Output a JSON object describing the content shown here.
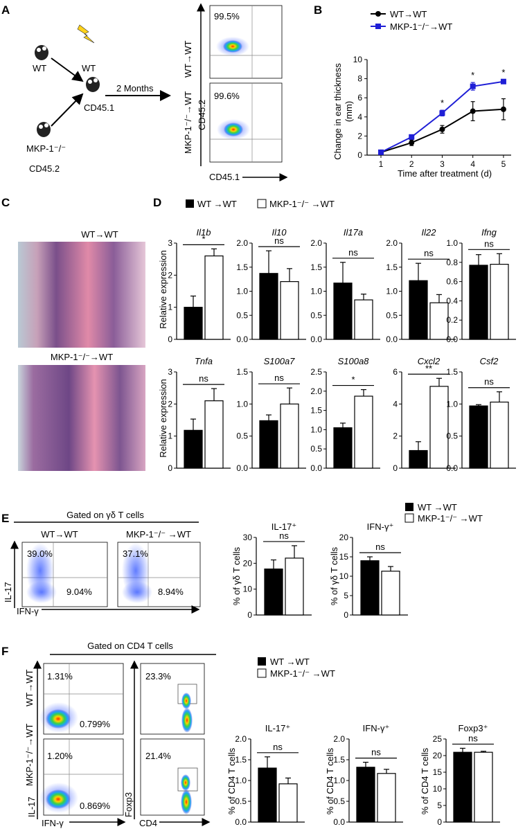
{
  "panel_labels": {
    "a": "A",
    "b": "B",
    "c": "C",
    "d": "D",
    "e": "E",
    "f": "F"
  },
  "panel_a": {
    "wt_label": "WT",
    "recipient_label": "WT",
    "recipient_cd": "CD45.1",
    "donor_label": "MKP-1⁻/⁻",
    "donor_cd": "CD45.2",
    "duration": "2 Months",
    "row1_label": "WT→WT",
    "row2_label": "MKP-1⁻/⁻→WT",
    "row1_pct": "99.5%",
    "row2_pct": "99.6%",
    "y_axis": "CD45.2",
    "x_axis": "CD45.1"
  },
  "chart_data": [
    {
      "id": "B",
      "type": "line",
      "xlabel": "Time after treatment (d)",
      "ylabel": "Change in ear thickness (mm)",
      "ylabel_line1": "Change in ear thickness",
      "ylabel_line2": "(mm)",
      "x": [
        1,
        2,
        3,
        4,
        5
      ],
      "ylim": [
        0,
        10
      ],
      "yticks": [
        0,
        2,
        4,
        6,
        8,
        10
      ],
      "series": [
        {
          "name": "WT→WT",
          "color": "#000000",
          "values": [
            0.3,
            1.3,
            2.7,
            4.6,
            4.8
          ],
          "err": [
            0.1,
            0.3,
            0.4,
            1.0,
            1.1
          ]
        },
        {
          "name": "MKP-1⁻/⁻→WT",
          "color": "#1f1fd6",
          "values": [
            0.3,
            1.9,
            4.4,
            7.2,
            7.7
          ],
          "err": [
            0.1,
            0.2,
            0.3,
            0.4,
            0.2
          ]
        }
      ],
      "significance": [
        "",
        "",
        "*",
        "*",
        "*"
      ]
    },
    {
      "id": "D",
      "type": "bar",
      "ylabel": "Relative expression",
      "legend": [
        "WT →WT",
        "MKP-1⁻/⁻ →WT"
      ],
      "genes": [
        {
          "name": "Il1b",
          "ymax": 3,
          "yticks": [
            "0",
            "1",
            "2",
            "3"
          ],
          "values": [
            1.0,
            2.6
          ],
          "err": [
            0.35,
            0.22
          ],
          "sig": "*"
        },
        {
          "name": "Il10",
          "ymax": 2.0,
          "yticks": [
            "0.0",
            "0.5",
            "1.0",
            "1.5",
            "2.0"
          ],
          "values": [
            1.37,
            1.2
          ],
          "err": [
            0.47,
            0.27
          ],
          "sig": "ns"
        },
        {
          "name": "Il17a",
          "ymax": 2.0,
          "yticks": [
            "0.0",
            "0.5",
            "1.0",
            "1.5",
            "2.0"
          ],
          "values": [
            1.17,
            0.82
          ],
          "err": [
            0.43,
            0.12
          ],
          "sig": "ns"
        },
        {
          "name": "Il22",
          "ymax": 2.0,
          "yticks": [
            "0.0",
            "0.5",
            "1.0",
            "1.5",
            "2.0"
          ],
          "values": [
            1.22,
            0.76
          ],
          "err": [
            0.36,
            0.17
          ],
          "sig": "ns"
        },
        {
          "name": "Ifng",
          "ymax": 1.0,
          "yticks": [
            "0.0",
            "0.2",
            "0.4",
            "0.6",
            "0.8",
            "1.0"
          ],
          "values": [
            0.77,
            0.78
          ],
          "err": [
            0.11,
            0.11
          ],
          "sig": "ns"
        },
        {
          "name": "Tnfa",
          "ymax": 3,
          "yticks": [
            "0",
            "1",
            "2",
            "3"
          ],
          "values": [
            1.18,
            2.1
          ],
          "err": [
            0.35,
            0.38
          ],
          "sig": "ns"
        },
        {
          "name": "S100a7",
          "ymax": 1.5,
          "yticks": [
            "0.0",
            "0.5",
            "1.0",
            "1.5"
          ],
          "values": [
            0.74,
            1.0
          ],
          "err": [
            0.09,
            0.25
          ],
          "sig": "ns"
        },
        {
          "name": "S100a8",
          "ymax": 2.5,
          "yticks": [
            "0.0",
            "0.5",
            "1.0",
            "1.5",
            "2.0",
            "2.5"
          ],
          "values": [
            1.05,
            1.87
          ],
          "err": [
            0.12,
            0.17
          ],
          "sig": "*"
        },
        {
          "name": "Cxcl2",
          "ymax": 6,
          "yticks": [
            "0",
            "2",
            "4",
            "6"
          ],
          "values": [
            1.1,
            5.1
          ],
          "err": [
            0.55,
            0.5
          ],
          "sig": "**"
        },
        {
          "name": "Csf2",
          "ymax": 1.5,
          "yticks": [
            "0.0",
            "0.5",
            "1.0",
            "1.5"
          ],
          "values": [
            0.97,
            1.03
          ],
          "err": [
            0.02,
            0.16
          ],
          "sig": "ns"
        }
      ]
    },
    {
      "id": "E",
      "type": "bar",
      "ylabel": "% of γδ T cells",
      "legend": [
        "WT →WT",
        "MKP-1⁻/⁻ →WT"
      ],
      "plots": [
        {
          "title": "IL-17⁺",
          "ymax": 30,
          "yticks": [
            "0",
            "10",
            "20",
            "30"
          ],
          "values": [
            17.8,
            22.0
          ],
          "err": [
            3.5,
            4.8
          ],
          "sig": "ns"
        },
        {
          "title": "IFN-γ⁺",
          "ymax": 20,
          "yticks": [
            "0",
            "5",
            "10",
            "15",
            "20"
          ],
          "values": [
            14.0,
            11.3
          ],
          "err": [
            1.0,
            1.2
          ],
          "sig": "ns"
        }
      ]
    },
    {
      "id": "F",
      "type": "bar",
      "ylabel": "% of CD4 T cells",
      "legend": [
        "WT →WT",
        "MKP-1⁻/⁻ →WT"
      ],
      "plots": [
        {
          "title": "IL-17⁺",
          "ymax": 2.0,
          "yticks": [
            "0.0",
            "0.5",
            "1.0",
            "1.5",
            "2.0"
          ],
          "values": [
            1.3,
            0.92
          ],
          "err": [
            0.27,
            0.14
          ],
          "sig": "ns"
        },
        {
          "title": "IFN-γ⁺",
          "ymax": 2.0,
          "yticks": [
            "0.0",
            "0.5",
            "1.0",
            "1.5",
            "2.0"
          ],
          "values": [
            1.32,
            1.17
          ],
          "err": [
            0.12,
            0.1
          ],
          "sig": "ns"
        },
        {
          "title": "Foxp3⁺",
          "ymax": 25,
          "yticks": [
            "0",
            "5",
            "10",
            "15",
            "20",
            "25"
          ],
          "values": [
            21.0,
            21.0
          ],
          "err": [
            1.2,
            0.3
          ],
          "sig": "ns"
        }
      ]
    }
  ],
  "panel_c": {
    "top_label": "WT→WT",
    "bottom_label": "MKP-1⁻/⁻→WT"
  },
  "panel_e": {
    "gate": "Gated on γδ T cells",
    "col1": "WT→WT",
    "col2": "MKP-1⁻/⁻ →WT",
    "p1_ul": "39.0%",
    "p1_lr": "9.04%",
    "p2_ul": "37.1%",
    "p2_lr": "8.94%",
    "y_axis": "IL-17",
    "x_axis": "IFN-γ"
  },
  "panel_f": {
    "gate": "Gated on CD4 T cells",
    "row1": "WT→WT",
    "row2": "MKP-1⁻/⁻→WT",
    "r1_ul": "1.31%",
    "r1_lr": "0.799%",
    "r2_ul": "1.20%",
    "r2_lr": "0.869%",
    "r1_fox": "23.3%",
    "r2_fox": "21.4%",
    "y1_axis": "IL-17",
    "x1_axis": "IFN-γ",
    "y2_axis": "Foxp3",
    "x2_axis": "CD4"
  }
}
